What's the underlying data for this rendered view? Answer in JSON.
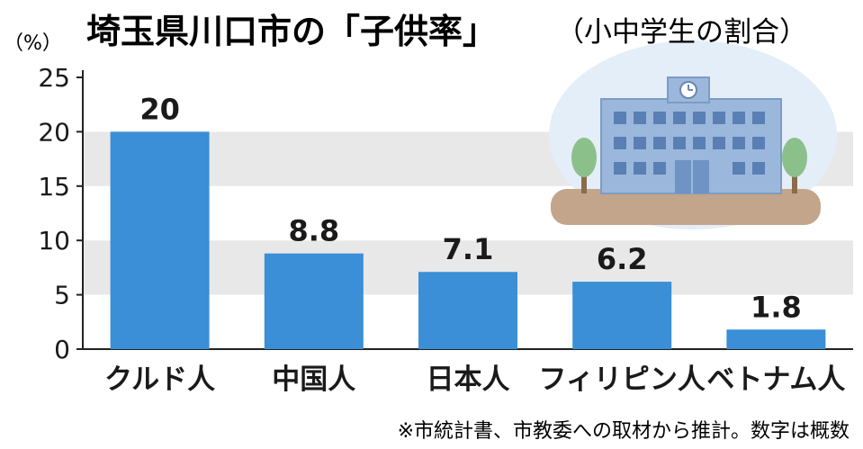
{
  "title": "埼玉県川口市の「子供率」",
  "subtitle": "（小中学生の割合）",
  "unit_label": "（%）",
  "note": "※市統計書、市教委への取材から推計。数字は概数",
  "colors": {
    "bar": "#3a8fd6",
    "band_light": "#ffffff",
    "band_shade": "#e8e8e8",
    "axis": "#222222",
    "text": "#1a1a1a"
  },
  "illustration": "school-building-icon",
  "chart_data": {
    "type": "bar",
    "categories": [
      "クルド人",
      "中国人",
      "日本人",
      "フィリピン人",
      "ベトナム人"
    ],
    "values": [
      20,
      8.8,
      7.1,
      6.2,
      1.8
    ],
    "data_labels": [
      "20",
      "8.8",
      "7.1",
      "6.2",
      "1.8"
    ],
    "ylim": [
      0,
      25
    ],
    "yticks": [
      0,
      5,
      10,
      15,
      20,
      25
    ],
    "ytick_labels": [
      "0",
      "5",
      "10",
      "15",
      "20",
      "25"
    ],
    "grid": "alternating horizontal bands",
    "xlabel": "",
    "ylabel": "%"
  }
}
